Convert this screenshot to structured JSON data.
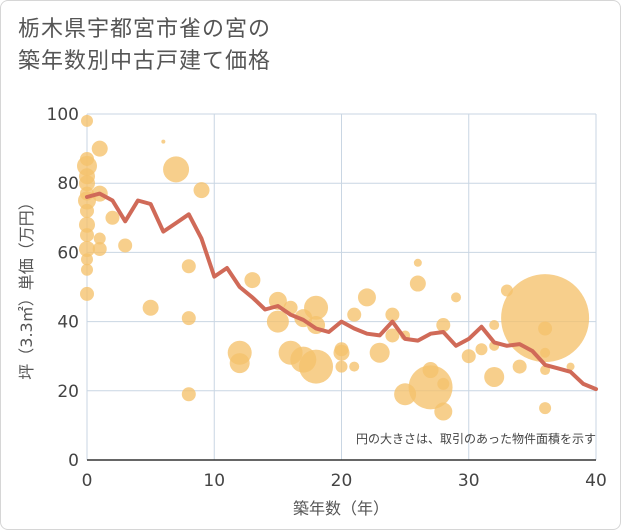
{
  "title_line1": "栃木県宇都宮市雀の宮の",
  "title_line2": "築年数別中古戸建て価格",
  "chart_data": {
    "type": "scatter",
    "xlabel": "築年数（年）",
    "ylabel": "坪（3.3㎡）単価（万円）",
    "xlim": [
      0,
      40
    ],
    "ylim": [
      0,
      100
    ],
    "xticks": [
      0,
      10,
      20,
      30,
      40
    ],
    "yticks": [
      0,
      20,
      40,
      60,
      80,
      100
    ],
    "grid": true,
    "note": "円の大きさは、取引のあった物件面積を示す",
    "colors": {
      "bubble": "#f5c16c",
      "line": "#d06a58",
      "grid": "#c9d6e3"
    },
    "bubbles": [
      {
        "x": 0,
        "y": 98,
        "s": 6
      },
      {
        "x": 0,
        "y": 87,
        "s": 7
      },
      {
        "x": 0,
        "y": 85,
        "s": 10
      },
      {
        "x": 0,
        "y": 82,
        "s": 8
      },
      {
        "x": 0,
        "y": 80,
        "s": 8
      },
      {
        "x": 0,
        "y": 77,
        "s": 7
      },
      {
        "x": 0,
        "y": 75,
        "s": 9
      },
      {
        "x": 0,
        "y": 72,
        "s": 7
      },
      {
        "x": 0,
        "y": 68,
        "s": 8
      },
      {
        "x": 0,
        "y": 65,
        "s": 7
      },
      {
        "x": 0,
        "y": 61,
        "s": 8
      },
      {
        "x": 0,
        "y": 58,
        "s": 6
      },
      {
        "x": 0,
        "y": 55,
        "s": 6
      },
      {
        "x": 0,
        "y": 48,
        "s": 7
      },
      {
        "x": 1,
        "y": 90,
        "s": 8
      },
      {
        "x": 1,
        "y": 77,
        "s": 8
      },
      {
        "x": 1,
        "y": 64,
        "s": 6
      },
      {
        "x": 1,
        "y": 61,
        "s": 7
      },
      {
        "x": 2,
        "y": 70,
        "s": 7
      },
      {
        "x": 3,
        "y": 62,
        "s": 7
      },
      {
        "x": 5,
        "y": 44,
        "s": 8
      },
      {
        "x": 6,
        "y": 92,
        "s": 2
      },
      {
        "x": 7,
        "y": 84,
        "s": 13
      },
      {
        "x": 8,
        "y": 56,
        "s": 7
      },
      {
        "x": 8,
        "y": 41,
        "s": 7
      },
      {
        "x": 8,
        "y": 19,
        "s": 7
      },
      {
        "x": 9,
        "y": 78,
        "s": 8
      },
      {
        "x": 12,
        "y": 31,
        "s": 12
      },
      {
        "x": 12,
        "y": 28,
        "s": 10
      },
      {
        "x": 13,
        "y": 52,
        "s": 8
      },
      {
        "x": 15,
        "y": 46,
        "s": 9
      },
      {
        "x": 15,
        "y": 40,
        "s": 11
      },
      {
        "x": 16,
        "y": 44,
        "s": 7
      },
      {
        "x": 16,
        "y": 31,
        "s": 12
      },
      {
        "x": 17,
        "y": 41,
        "s": 9
      },
      {
        "x": 17,
        "y": 29,
        "s": 13
      },
      {
        "x": 18,
        "y": 44,
        "s": 12
      },
      {
        "x": 18,
        "y": 39,
        "s": 9
      },
      {
        "x": 18,
        "y": 27,
        "s": 17
      },
      {
        "x": 20,
        "y": 32,
        "s": 7
      },
      {
        "x": 20,
        "y": 31,
        "s": 8
      },
      {
        "x": 20,
        "y": 27,
        "s": 6
      },
      {
        "x": 21,
        "y": 42,
        "s": 7
      },
      {
        "x": 21,
        "y": 27,
        "s": 5
      },
      {
        "x": 22,
        "y": 47,
        "s": 9
      },
      {
        "x": 23,
        "y": 31,
        "s": 10
      },
      {
        "x": 24,
        "y": 42,
        "s": 7
      },
      {
        "x": 24,
        "y": 36,
        "s": 7
      },
      {
        "x": 25,
        "y": 36,
        "s": 5
      },
      {
        "x": 25,
        "y": 19,
        "s": 11
      },
      {
        "x": 26,
        "y": 51,
        "s": 8
      },
      {
        "x": 26,
        "y": 57,
        "s": 4
      },
      {
        "x": 27,
        "y": 26,
        "s": 8
      },
      {
        "x": 27,
        "y": 21,
        "s": 22
      },
      {
        "x": 28,
        "y": 39,
        "s": 7
      },
      {
        "x": 28,
        "y": 22,
        "s": 6
      },
      {
        "x": 28,
        "y": 14,
        "s": 9
      },
      {
        "x": 29,
        "y": 47,
        "s": 5
      },
      {
        "x": 30,
        "y": 30,
        "s": 7
      },
      {
        "x": 31,
        "y": 32,
        "s": 6
      },
      {
        "x": 32,
        "y": 39,
        "s": 5
      },
      {
        "x": 32,
        "y": 33,
        "s": 5
      },
      {
        "x": 32,
        "y": 24,
        "s": 10
      },
      {
        "x": 33,
        "y": 49,
        "s": 6
      },
      {
        "x": 34,
        "y": 27,
        "s": 7
      },
      {
        "x": 36,
        "y": 41,
        "s": 44
      },
      {
        "x": 36,
        "y": 38,
        "s": 7
      },
      {
        "x": 36,
        "y": 31,
        "s": 5
      },
      {
        "x": 36,
        "y": 26,
        "s": 5
      },
      {
        "x": 36,
        "y": 15,
        "s": 6
      },
      {
        "x": 38,
        "y": 27,
        "s": 4
      }
    ],
    "trend": {
      "x": [
        0,
        1,
        2,
        3,
        4,
        5,
        6,
        7,
        8,
        9,
        10,
        11,
        12,
        13,
        14,
        15,
        16,
        17,
        18,
        19,
        20,
        21,
        22,
        23,
        24,
        25,
        26,
        27,
        28,
        29,
        30,
        31,
        32,
        33,
        34,
        35,
        36,
        37,
        38,
        39,
        40
      ],
      "y": [
        76,
        77,
        75,
        69,
        75,
        74,
        66,
        68.5,
        71,
        64,
        53,
        55.5,
        50,
        47,
        43.5,
        44.5,
        42,
        40.5,
        38,
        37,
        40,
        38,
        36.5,
        36,
        40,
        35,
        34.5,
        36.5,
        37,
        33,
        35,
        38.5,
        34,
        33,
        33.5,
        31.5,
        27.5,
        26.5,
        25.5,
        22,
        20.5
      ]
    }
  }
}
